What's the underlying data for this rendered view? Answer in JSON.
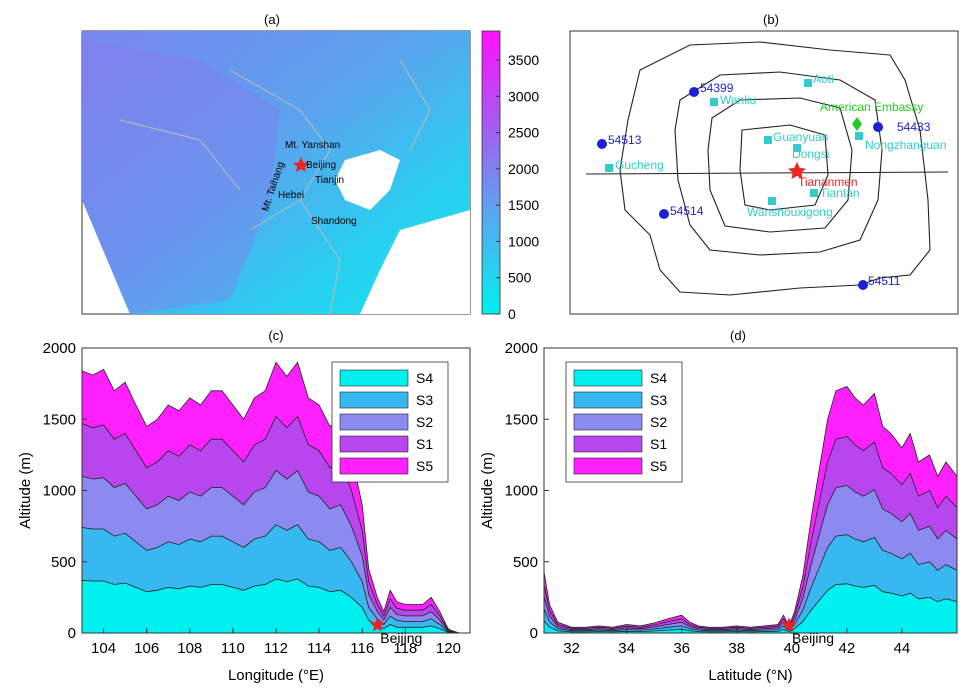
{
  "panels": {
    "a": {
      "label": "(a)",
      "colorbar": {
        "ticks": [
          "0",
          "500",
          "1000",
          "1500",
          "2000",
          "2500",
          "3000",
          "3500"
        ],
        "min": 0,
        "max": 3900
      },
      "places": [
        "Mt. Yanshan",
        "Beijing",
        "Tianjin",
        "Mt. Taihang",
        "Hebei",
        "Shandong"
      ]
    },
    "b": {
      "label": "(b)",
      "stations": [
        "54399",
        "54513",
        "54514",
        "54433",
        "54511"
      ],
      "sites": [
        "Aoti",
        "Wanliu",
        "Guanyuan",
        "Dongsi",
        "Gucheng",
        "Nongzhanguan",
        "Tiantan",
        "Wanshouxigong"
      ],
      "embassy": "American Embassy",
      "center": "Tiananmen"
    },
    "c": {
      "label": "(c)",
      "marker": "Beijing"
    },
    "d": {
      "label": "(d)",
      "marker": "Beijing"
    }
  },
  "colors": {
    "S4": "#00f0f0",
    "S3": "#38b8f0",
    "S2": "#8a8af0",
    "S1": "#b846ef",
    "S5": "#ff20ff",
    "station": "#1f1fd6",
    "site": "#33cccc",
    "embassy": "#22cc22",
    "center": "#ee2222"
  },
  "chart_data": [
    {
      "type": "area",
      "panel": "c",
      "xlabel": "Longitude (°E)",
      "ylabel": "Altitude (m)",
      "xlim": [
        103,
        121
      ],
      "ylim": [
        0,
        2000
      ],
      "xticks": [
        104,
        106,
        108,
        110,
        112,
        114,
        116,
        118,
        120
      ],
      "yticks": [
        0,
        500,
        1000,
        1500,
        2000
      ],
      "legend": [
        "S4",
        "S3",
        "S2",
        "S1",
        "S5"
      ],
      "legend_position": "top-right",
      "x": [
        103,
        103.5,
        104,
        104.5,
        105,
        105.5,
        106,
        106.5,
        107,
        107.5,
        108,
        108.5,
        109,
        109.5,
        110,
        110.5,
        111,
        111.5,
        112,
        112.5,
        113,
        113.5,
        114,
        114.5,
        115,
        115.5,
        116,
        116.3,
        116.7,
        117,
        117.3,
        117.6,
        118,
        118.4,
        118.8,
        119.2,
        119.6,
        120,
        120.5,
        121
      ],
      "series": [
        {
          "name": "S4",
          "values": [
            370,
            365,
            365,
            340,
            350,
            320,
            290,
            300,
            320,
            310,
            330,
            320,
            340,
            340,
            320,
            300,
            330,
            340,
            380,
            360,
            380,
            330,
            320,
            290,
            300,
            250,
            180,
            90,
            50,
            30,
            60,
            40,
            40,
            40,
            40,
            50,
            30,
            5,
            0,
            0
          ]
        },
        {
          "name": "S3",
          "values": [
            740,
            730,
            730,
            680,
            700,
            640,
            580,
            600,
            640,
            620,
            660,
            640,
            680,
            680,
            640,
            600,
            660,
            680,
            760,
            720,
            760,
            660,
            640,
            580,
            600,
            500,
            360,
            180,
            100,
            60,
            120,
            90,
            80,
            80,
            80,
            100,
            60,
            10,
            0,
            0
          ]
        },
        {
          "name": "S2",
          "values": [
            1100,
            1080,
            1090,
            1020,
            1050,
            960,
            870,
            900,
            960,
            930,
            990,
            960,
            1020,
            1020,
            960,
            900,
            990,
            1020,
            1140,
            1080,
            1140,
            990,
            960,
            870,
            900,
            750,
            540,
            270,
            150,
            90,
            180,
            130,
            120,
            120,
            120,
            150,
            90,
            15,
            0,
            0
          ]
        },
        {
          "name": "S1",
          "values": [
            1470,
            1440,
            1460,
            1360,
            1400,
            1280,
            1160,
            1200,
            1280,
            1240,
            1320,
            1280,
            1360,
            1360,
            1280,
            1200,
            1320,
            1360,
            1520,
            1440,
            1520,
            1320,
            1280,
            1160,
            1200,
            1000,
            720,
            360,
            200,
            120,
            240,
            175,
            160,
            160,
            160,
            200,
            120,
            20,
            0,
            0
          ]
        },
        {
          "name": "S5",
          "values": [
            1840,
            1810,
            1850,
            1700,
            1760,
            1600,
            1450,
            1500,
            1600,
            1560,
            1650,
            1600,
            1700,
            1700,
            1600,
            1500,
            1650,
            1700,
            1900,
            1800,
            1900,
            1650,
            1600,
            1450,
            1500,
            1250,
            900,
            450,
            250,
            150,
            300,
            220,
            200,
            200,
            200,
            250,
            150,
            25,
            0,
            0
          ]
        }
      ]
    },
    {
      "type": "area",
      "panel": "d",
      "xlabel": "Latitude (°N)",
      "ylabel": "Altitude (m)",
      "xlim": [
        31,
        46
      ],
      "ylim": [
        0,
        2000
      ],
      "xticks": [
        32,
        34,
        36,
        38,
        40,
        42,
        44
      ],
      "yticks": [
        0,
        500,
        1000,
        1500,
        2000
      ],
      "legend": [
        "S4",
        "S3",
        "S2",
        "S1",
        "S5"
      ],
      "legend_position": "top-left",
      "x": [
        31,
        31.2,
        31.5,
        32,
        32.5,
        33,
        33.5,
        34,
        34.5,
        35,
        35.5,
        36,
        36.3,
        36.6,
        37,
        37.5,
        38,
        38.5,
        39,
        39.5,
        39.7,
        39.9,
        40.1,
        40.4,
        40.7,
        41,
        41.3,
        41.6,
        42,
        42.3,
        42.6,
        43,
        43.3,
        43.6,
        44,
        44.3,
        44.6,
        45,
        45.3,
        45.6,
        46
      ],
      "series": [
        {
          "name": "S4",
          "values": [
            85,
            40,
            15,
            8,
            8,
            10,
            8,
            12,
            10,
            14,
            20,
            25,
            15,
            10,
            8,
            8,
            10,
            8,
            10,
            12,
            25,
            10,
            30,
            80,
            160,
            230,
            300,
            340,
            345,
            330,
            320,
            335,
            290,
            280,
            260,
            280,
            240,
            250,
            220,
            240,
            220
          ]
        },
        {
          "name": "S3",
          "values": [
            170,
            80,
            30,
            16,
            16,
            20,
            16,
            24,
            20,
            28,
            40,
            50,
            30,
            20,
            16,
            16,
            20,
            16,
            20,
            24,
            50,
            20,
            60,
            160,
            320,
            460,
            600,
            680,
            690,
            660,
            640,
            670,
            580,
            560,
            520,
            560,
            480,
            500,
            440,
            480,
            440
          ]
        },
        {
          "name": "S2",
          "values": [
            255,
            120,
            45,
            24,
            24,
            30,
            24,
            36,
            30,
            42,
            60,
            75,
            45,
            30,
            24,
            24,
            30,
            24,
            30,
            36,
            75,
            30,
            90,
            240,
            480,
            690,
            900,
            1020,
            1035,
            990,
            960,
            1005,
            870,
            840,
            780,
            840,
            720,
            750,
            660,
            720,
            660
          ]
        },
        {
          "name": "S1",
          "values": [
            340,
            160,
            60,
            32,
            32,
            40,
            32,
            48,
            40,
            56,
            80,
            100,
            60,
            40,
            32,
            32,
            40,
            32,
            40,
            48,
            100,
            40,
            120,
            320,
            640,
            920,
            1200,
            1360,
            1380,
            1320,
            1280,
            1340,
            1160,
            1120,
            1040,
            1120,
            960,
            1000,
            880,
            960,
            880
          ]
        },
        {
          "name": "S5",
          "values": [
            430,
            200,
            75,
            40,
            40,
            50,
            40,
            60,
            50,
            70,
            100,
            125,
            75,
            50,
            40,
            40,
            50,
            40,
            50,
            60,
            125,
            50,
            150,
            400,
            800,
            1150,
            1500,
            1700,
            1730,
            1650,
            1600,
            1680,
            1450,
            1400,
            1300,
            1400,
            1200,
            1250,
            1100,
            1200,
            1100
          ]
        }
      ]
    }
  ]
}
